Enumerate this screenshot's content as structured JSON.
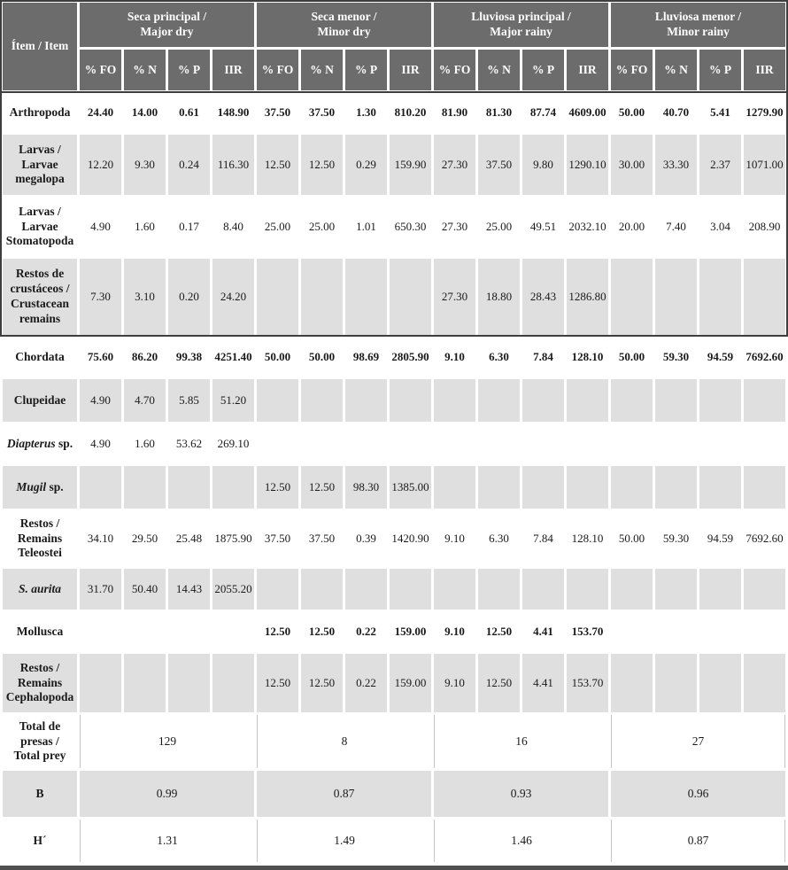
{
  "table": {
    "item_header": "Ítem / Item",
    "subcolumns": [
      "% FO",
      "% N",
      "% P",
      "IIR"
    ],
    "groups": [
      {
        "lines": [
          "Seca principal /",
          "Major dry"
        ]
      },
      {
        "lines": [
          "Seca menor /",
          "Minor dry"
        ]
      },
      {
        "lines": [
          "Lluviosa principal /",
          "Major rainy"
        ]
      },
      {
        "lines": [
          "Lluviosa menor /",
          "Minor rainy"
        ]
      }
    ],
    "rows": [
      {
        "label": [
          [
            {
              "t": "Arthropoda"
            }
          ]
        ],
        "bold": true,
        "shaded": false,
        "values": [
          "24.40",
          "14.00",
          "0.61",
          "148.90",
          "37.50",
          "37.50",
          "1.30",
          "810.20",
          "81.90",
          "81.30",
          "87.74",
          "4609.00",
          "50.00",
          "40.70",
          "5.41",
          "1279.90"
        ]
      },
      {
        "label": [
          [
            {
              "t": "Larvas /"
            }
          ],
          [
            {
              "t": "Larvae"
            }
          ],
          [
            {
              "t": "megalopa"
            }
          ]
        ],
        "bold": false,
        "shaded": true,
        "values": [
          "12.20",
          "9.30",
          "0.24",
          "116.30",
          "12.50",
          "12.50",
          "0.29",
          "159.90",
          "27.30",
          "37.50",
          "9.80",
          "1290.10",
          "30.00",
          "33.30",
          "2.37",
          "1071.00"
        ]
      },
      {
        "label": [
          [
            {
              "t": "Larvas /"
            }
          ],
          [
            {
              "t": "Larvae"
            }
          ],
          [
            {
              "t": "Stomatopoda"
            }
          ]
        ],
        "bold": false,
        "shaded": false,
        "values": [
          "4.90",
          "1.60",
          "0.17",
          "8.40",
          "25.00",
          "25.00",
          "1.01",
          "650.30",
          "27.30",
          "25.00",
          "49.51",
          "2032.10",
          "20.00",
          "7.40",
          "3.04",
          "208.90"
        ]
      },
      {
        "label": [
          [
            {
              "t": "Restos de"
            }
          ],
          [
            {
              "t": "crustáceos /"
            }
          ],
          [
            {
              "t": "Crustacean"
            }
          ],
          [
            {
              "t": "remains"
            }
          ]
        ],
        "bold": false,
        "shaded": true,
        "values": [
          "7.30",
          "3.10",
          "0.20",
          "24.20",
          "",
          "",
          "",
          "",
          "27.30",
          "18.80",
          "28.43",
          "1286.80",
          "",
          "",
          "",
          ""
        ]
      },
      {
        "label": [
          [
            {
              "t": "Chordata"
            }
          ]
        ],
        "bold": true,
        "shaded": false,
        "values": [
          "75.60",
          "86.20",
          "99.38",
          "4251.40",
          "50.00",
          "50.00",
          "98.69",
          "2805.90",
          "9.10",
          "6.30",
          "7.84",
          "128.10",
          "50.00",
          "59.30",
          "94.59",
          "7692.60"
        ]
      },
      {
        "label": [
          [
            {
              "t": "Clupeidae"
            }
          ]
        ],
        "bold": false,
        "shaded": true,
        "values": [
          "4.90",
          "4.70",
          "5.85",
          "51.20",
          "",
          "",
          "",
          "",
          "",
          "",
          "",
          "",
          "",
          "",
          "",
          ""
        ]
      },
      {
        "label": [
          [
            {
              "t": "Diapterus",
              "i": true
            },
            {
              "t": " sp."
            }
          ]
        ],
        "bold": false,
        "shaded": false,
        "values": [
          "4.90",
          "1.60",
          "53.62",
          "269.10",
          "",
          "",
          "",
          "",
          "",
          "",
          "",
          "",
          "",
          "",
          "",
          ""
        ]
      },
      {
        "label": [
          [
            {
              "t": "Mugil",
              "i": true
            },
            {
              "t": " sp."
            }
          ]
        ],
        "bold": false,
        "shaded": true,
        "values": [
          "",
          "",
          "",
          "",
          "12.50",
          "12.50",
          "98.30",
          "1385.00",
          "",
          "",
          "",
          "",
          "",
          "",
          "",
          ""
        ]
      },
      {
        "label": [
          [
            {
              "t": "Restos /"
            }
          ],
          [
            {
              "t": "Remains"
            }
          ],
          [
            {
              "t": "Teleostei"
            }
          ]
        ],
        "bold": false,
        "shaded": false,
        "values": [
          "34.10",
          "29.50",
          "25.48",
          "1875.90",
          "37.50",
          "37.50",
          "0.39",
          "1420.90",
          "9.10",
          "6.30",
          "7.84",
          "128.10",
          "50.00",
          "59.30",
          "94.59",
          "7692.60"
        ]
      },
      {
        "label": [
          [
            {
              "t": "S. aurita",
              "i": true
            }
          ]
        ],
        "bold": false,
        "shaded": true,
        "values": [
          "31.70",
          "50.40",
          "14.43",
          "2055.20",
          "",
          "",
          "",
          "",
          "",
          "",
          "",
          "",
          "",
          "",
          "",
          ""
        ]
      },
      {
        "label": [
          [
            {
              "t": "Mollusca"
            }
          ]
        ],
        "bold": true,
        "shaded": false,
        "values": [
          "",
          "",
          "",
          "",
          "12.50",
          "12.50",
          "0.22",
          "159.00",
          "9.10",
          "12.50",
          "4.41",
          "153.70",
          "",
          "",
          "",
          ""
        ]
      },
      {
        "label": [
          [
            {
              "t": "Restos /"
            }
          ],
          [
            {
              "t": "Remains"
            }
          ],
          [
            {
              "t": "Cephalopoda"
            }
          ]
        ],
        "bold": false,
        "shaded": true,
        "values": [
          "",
          "",
          "",
          "",
          "12.50",
          "12.50",
          "0.22",
          "159.00",
          "9.10",
          "12.50",
          "4.41",
          "153.70",
          "",
          "",
          "",
          ""
        ]
      }
    ],
    "summary_rows": [
      {
        "label": [
          [
            {
              "t": "Total de"
            }
          ],
          [
            {
              "t": "presas /"
            }
          ],
          [
            {
              "t": "Total prey"
            }
          ]
        ],
        "shaded": false,
        "values": [
          "129",
          "8",
          "16",
          "27"
        ]
      },
      {
        "label": [
          [
            {
              "t": "B"
            }
          ]
        ],
        "shaded": true,
        "values": [
          "0.99",
          "0.87",
          "0.93",
          "0.96"
        ]
      },
      {
        "label": [
          [
            {
              "t": "H´"
            }
          ]
        ],
        "shaded": false,
        "values": [
          "1.31",
          "1.49",
          "1.46",
          "0.87"
        ]
      }
    ]
  },
  "colors": {
    "header_bg": "#6d6c6c",
    "shaded_row_bg": "#e0dfdf",
    "rule": "#3f3e3e",
    "bottom_bar": "#515050",
    "header_text": "#ffffff"
  }
}
